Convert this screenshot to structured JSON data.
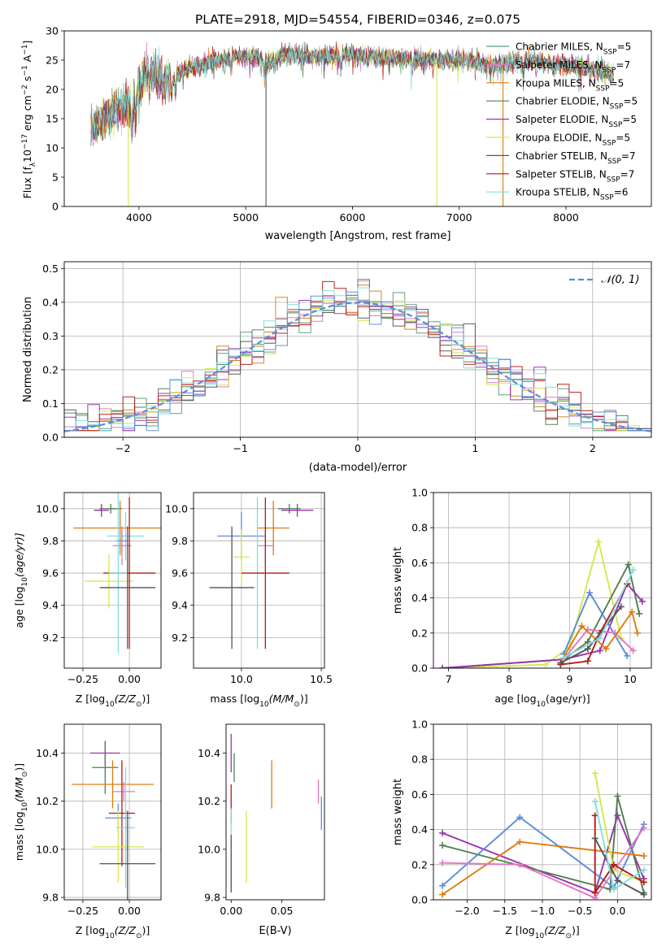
{
  "title": "PLATE=2918, MJD=54554, FIBERID=0346, z=0.075",
  "colors": {
    "Chabrier MILES": "#5a9a78",
    "Salpeter MILES": "#e377c2",
    "Kroupa MILES": "#e07b10",
    "Chabrier ELODIE": "#4f7f50",
    "Salpeter ELODIE": "#9b30b0",
    "Kroupa ELODIE": "#d4e84a",
    "Chabrier STELIB": "#555555",
    "Salpeter STELIB": "#b81818",
    "Kroupa STELIB": "#7fdede",
    "Blue model": "#5b8bdc",
    "Normal curve": "#5b8bdc"
  },
  "chart_data": [
    {
      "type": "line",
      "id": "spectrum",
      "title": "PLATE=2918, MJD=54554, FIBERID=0346, z=0.075",
      "xlabel": "wavelength [Angstrom, rest frame]",
      "ylabel_parts": [
        "Flux [f",
        "λ",
        "10",
        "−17",
        " erg cm",
        "−2",
        " s",
        "−1",
        " A",
        "−1",
        "]"
      ],
      "xlim": [
        3300,
        8800
      ],
      "ylim": [
        0,
        30
      ],
      "xticks": [
        4000,
        5000,
        6000,
        7000,
        8000
      ],
      "yticks": [
        0,
        5,
        10,
        15,
        20,
        25,
        30
      ],
      "legend_position": "upper right",
      "continuum": [
        [
          3550,
          13
        ],
        [
          3700,
          15.5
        ],
        [
          3850,
          17
        ],
        [
          3950,
          18
        ],
        [
          4000,
          20
        ],
        [
          4050,
          22
        ],
        [
          4100,
          23.5
        ],
        [
          4200,
          22
        ],
        [
          4300,
          22
        ],
        [
          4400,
          23
        ],
        [
          4500,
          24
        ],
        [
          4600,
          24
        ],
        [
          4700,
          25
        ],
        [
          4800,
          25
        ],
        [
          4900,
          25.5
        ],
        [
          5000,
          25.5
        ],
        [
          5100,
          25.5
        ],
        [
          5200,
          24.5
        ],
        [
          5300,
          25.5
        ],
        [
          5500,
          26
        ],
        [
          5700,
          25.5
        ],
        [
          5900,
          26
        ],
        [
          6100,
          25.5
        ],
        [
          6300,
          25.5
        ],
        [
          6500,
          25.2
        ],
        [
          6700,
          25
        ],
        [
          6900,
          25
        ],
        [
          7100,
          25
        ],
        [
          7300,
          24
        ],
        [
          7500,
          24.5
        ],
        [
          7700,
          25
        ],
        [
          7900,
          24.2
        ],
        [
          8100,
          24
        ],
        [
          8300,
          23.5
        ],
        [
          8450,
          22
        ]
      ],
      "series": [
        {
          "name_parts": [
            "Chabrier MILES, N",
            "SSP",
            "=5"
          ],
          "color_key": "Chabrier MILES"
        },
        {
          "name_parts": [
            "Salpeter MILES, N",
            "SSP",
            "=7"
          ],
          "color_key": "Salpeter MILES"
        },
        {
          "name_parts": [
            "Kroupa MILES, N",
            "SSP",
            "=5"
          ],
          "color_key": "Kroupa MILES"
        },
        {
          "name_parts": [
            "Chabrier ELODIE, N",
            "SSP",
            "=5"
          ],
          "color_key": "Chabrier ELODIE"
        },
        {
          "name_parts": [
            "Salpeter ELODIE, N",
            "SSP",
            "=5"
          ],
          "color_key": "Salpeter ELODIE"
        },
        {
          "name_parts": [
            "Kroupa ELODIE, N",
            "SSP",
            "=5"
          ],
          "color_key": "Kroupa ELODIE"
        },
        {
          "name_parts": [
            "Chabrier STELIB, N",
            "SSP",
            "=7"
          ],
          "color_key": "Chabrier STELIB"
        },
        {
          "name_parts": [
            "Salpeter STELIB, N",
            "SSP",
            "=7"
          ],
          "color_key": "Salpeter STELIB"
        },
        {
          "name_parts": [
            "Kroupa STELIB, N",
            "SSP",
            "=6"
          ],
          "color_key": "Kroupa STELIB"
        }
      ],
      "drops": [
        {
          "x": 3900,
          "color_key": "Kroupa ELODIE"
        },
        {
          "x": 5190,
          "color_key": "Chabrier STELIB"
        },
        {
          "x": 6790,
          "color_key": "Kroupa ELODIE"
        },
        {
          "x": 7410,
          "color_key": "Kroupa MILES"
        }
      ]
    },
    {
      "type": "histogram",
      "id": "residuals",
      "xlabel": "(data-model)/error",
      "ylabel": "Normed distribution",
      "xlim": [
        -2.5,
        2.5
      ],
      "ylim": [
        0,
        0.52
      ],
      "xticks": [
        -2,
        -1,
        0,
        1,
        2
      ],
      "yticks": [
        0.0,
        0.1,
        0.2,
        0.3,
        0.4,
        0.5
      ],
      "grid": true,
      "legend": "𝒩(0, 1)",
      "legend_position": "upper right",
      "bin_width": 0.1
    },
    {
      "type": "errorbar",
      "id": "age-vs-Z",
      "xlabel_parts": [
        "Z [log",
        "10",
        "(Z/Z",
        "⊙",
        ")]"
      ],
      "ylabel_parts": [
        "age  [log",
        "10",
        "(age/yr)]"
      ],
      "xlim": [
        -0.35,
        0.17
      ],
      "ylim": [
        9.01,
        10.1
      ],
      "xticks": [
        -0.25,
        0.0
      ],
      "yticks": [
        9.2,
        9.4,
        9.6,
        9.8,
        10.0
      ],
      "grid": true,
      "points": [
        {
          "x": -0.1,
          "xerr": 0.06,
          "y": 10.0,
          "yerr": 0.03,
          "color_key": "Chabrier ELODIE"
        },
        {
          "x": -0.15,
          "xerr": 0.04,
          "y": 9.99,
          "yerr": 0.04,
          "color_key": "Salpeter ELODIE"
        },
        {
          "x": -0.05,
          "xerr": 0.25,
          "y": 9.88,
          "yerr": 0.17,
          "color_key": "Kroupa MILES"
        },
        {
          "x": -0.02,
          "xerr": 0.1,
          "y": 9.83,
          "yerr": 0.15,
          "color_key": "Kroupa STELIB"
        },
        {
          "x": -0.04,
          "xerr": 0.03,
          "y": 9.8,
          "yerr": 0.07,
          "color_key": "Blue model"
        },
        {
          "x": -0.04,
          "xerr": 0.05,
          "y": 9.77,
          "yerr": 0.12,
          "color_key": "Salpeter MILES"
        },
        {
          "x": -0.11,
          "xerr": 0.13,
          "y": 9.55,
          "yerr": 0.17,
          "color_key": "Kroupa ELODIE"
        },
        {
          "x": 0.0,
          "xerr": 0.14,
          "y": 9.6,
          "yerr": 0.47,
          "color_key": "Salpeter STELIB"
        },
        {
          "x": -0.06,
          "xerr": 0.05,
          "y": 9.6,
          "yerr": 0.5,
          "color_key": "Kroupa STELIB"
        },
        {
          "x": -0.01,
          "xerr": 0.15,
          "y": 9.51,
          "yerr": 0.38,
          "color_key": "Chabrier STELIB"
        }
      ]
    },
    {
      "type": "errorbar",
      "id": "age-vs-mass",
      "xlabel_parts": [
        "mass [log",
        "10",
        "(M/M",
        "⊙",
        ")]"
      ],
      "xlim": [
        9.7,
        10.52
      ],
      "ylim": [
        9.01,
        10.1
      ],
      "xticks": [
        10.0,
        10.5
      ],
      "yticks": [
        9.2,
        9.4,
        9.6,
        9.8,
        10.0
      ],
      "grid": true,
      "points": [
        {
          "x": 10.3,
          "xerr": 0.07,
          "y": 10.0,
          "yerr": 0.03,
          "color_key": "Chabrier ELODIE"
        },
        {
          "x": 10.35,
          "xerr": 0.1,
          "y": 9.99,
          "yerr": 0.04,
          "color_key": "Salpeter ELODIE"
        },
        {
          "x": 10.2,
          "xerr": 0.1,
          "y": 9.88,
          "yerr": 0.17,
          "color_key": "Kroupa MILES"
        },
        {
          "x": 10.0,
          "xerr": 0.15,
          "y": 9.83,
          "yerr": 0.15,
          "color_key": "Blue model"
        },
        {
          "x": 10.15,
          "xerr": 0.05,
          "y": 9.77,
          "yerr": 0.12,
          "color_key": "Salpeter MILES"
        },
        {
          "x": 10.0,
          "xerr": 0.05,
          "y": 9.7,
          "yerr": 0.17,
          "color_key": "Kroupa ELODIE"
        },
        {
          "x": 10.1,
          "xerr": 0.02,
          "y": 9.6,
          "yerr": 0.47,
          "color_key": "Kroupa STELIB"
        },
        {
          "x": 10.15,
          "xerr": 0.15,
          "y": 9.6,
          "yerr": 0.47,
          "color_key": "Salpeter STELIB"
        },
        {
          "x": 9.94,
          "xerr": 0.14,
          "y": 9.51,
          "yerr": 0.38,
          "color_key": "Chabrier STELIB"
        }
      ]
    },
    {
      "type": "line",
      "id": "weight-vs-age",
      "xlabel_parts": [
        "age  [log",
        "10",
        "(age/yr)]"
      ],
      "ylabel": "mass weight",
      "xlim": [
        6.75,
        10.35
      ],
      "ylim": [
        0,
        1.0
      ],
      "xticks": [
        7,
        8,
        9,
        10
      ],
      "yticks": [
        0.0,
        0.2,
        0.4,
        0.6,
        0.8,
        1.0
      ],
      "grid": true,
      "series": [
        {
          "color_key": "Kroupa ELODIE",
          "x": [
            6.9,
            8.6,
            9.0,
            9.48,
            9.85
          ],
          "y": [
            0.0,
            0.02,
            0.12,
            0.72,
            0.17
          ]
        },
        {
          "color_key": "Chabrier ELODIE",
          "x": [
            6.9,
            8.9,
            9.3,
            9.97,
            10.15
          ],
          "y": [
            0.0,
            0.05,
            0.15,
            0.59,
            0.31
          ]
        },
        {
          "color_key": "Salpeter ELODIE",
          "x": [
            6.9,
            8.9,
            9.5,
            9.95,
            10.2
          ],
          "y": [
            0.0,
            0.05,
            0.1,
            0.48,
            0.38
          ]
        },
        {
          "color_key": "Blue model",
          "x": [
            8.9,
            9.33,
            9.95
          ],
          "y": [
            0.08,
            0.43,
            0.07
          ]
        },
        {
          "color_key": "Salpeter MILES",
          "x": [
            8.9,
            9.3,
            9.75,
            10.05
          ],
          "y": [
            0.05,
            0.22,
            0.2,
            0.1
          ]
        },
        {
          "color_key": "Kroupa MILES",
          "x": [
            8.85,
            9.2,
            9.6,
            10.03,
            10.12
          ],
          "y": [
            0.03,
            0.24,
            0.11,
            0.32,
            0.2
          ]
        },
        {
          "color_key": "Salpeter STELIB",
          "x": [
            8.85,
            9.3,
            9.5,
            9.95
          ],
          "y": [
            0.02,
            0.04,
            0.2,
            0.48
          ]
        },
        {
          "color_key": "Chabrier STELIB",
          "x": [
            8.85,
            9.3,
            9.85
          ],
          "y": [
            0.03,
            0.11,
            0.35
          ]
        },
        {
          "color_key": "Kroupa STELIB",
          "x": [
            8.9,
            9.5,
            10.05
          ],
          "y": [
            0.06,
            0.17,
            0.56
          ]
        }
      ]
    },
    {
      "type": "errorbar",
      "id": "mass-vs-Z",
      "xlabel_parts": [
        "Z [log",
        "10",
        "(Z/Z",
        "⊙",
        ")]"
      ],
      "ylabel_parts": [
        "mass [log",
        "10",
        "(M/M",
        "⊙",
        ")]"
      ],
      "xlim": [
        -0.35,
        0.17
      ],
      "ylim": [
        9.79,
        10.52
      ],
      "xticks": [
        -0.25,
        0.0
      ],
      "yticks": [
        9.8,
        10.0,
        10.2,
        10.4
      ],
      "grid": true,
      "points": [
        {
          "x": -0.13,
          "xerr": 0.08,
          "y": 10.4,
          "yerr": 0.05,
          "color_key": "Salpeter ELODIE"
        },
        {
          "x": -0.13,
          "xerr": 0.07,
          "y": 10.34,
          "yerr": 0.11,
          "color_key": "Chabrier ELODIE"
        },
        {
          "x": -0.09,
          "xerr": 0.22,
          "y": 10.27,
          "yerr": 0.1,
          "color_key": "Kroupa MILES"
        },
        {
          "x": -0.03,
          "xerr": 0.06,
          "y": 10.24,
          "yerr": 0.04,
          "color_key": "Salpeter MILES"
        },
        {
          "x": -0.04,
          "xerr": 0.07,
          "y": 10.15,
          "yerr": 0.22,
          "color_key": "Salpeter STELIB"
        },
        {
          "x": -0.06,
          "xerr": 0.07,
          "y": 10.13,
          "yerr": 0.06,
          "color_key": "Blue model"
        },
        {
          "x": -0.06,
          "xerr": 0.14,
          "y": 10.01,
          "yerr": 0.15,
          "color_key": "Kroupa ELODIE"
        },
        {
          "x": -0.02,
          "xerr": 0.05,
          "y": 10.09,
          "yerr": 0.25,
          "color_key": "Kroupa STELIB"
        },
        {
          "x": -0.01,
          "xerr": 0.15,
          "y": 9.94,
          "yerr": 0.22,
          "color_key": "Chabrier STELIB"
        }
      ]
    },
    {
      "type": "errorbar",
      "id": "mass-vs-EBV",
      "xlabel": "E(B-V)",
      "xlim": [
        -0.005,
        0.092
      ],
      "ylim": [
        9.79,
        10.52
      ],
      "xticks": [
        0.0,
        0.05
      ],
      "yticks": [
        9.8,
        10.0,
        10.2,
        10.4
      ],
      "grid": false,
      "points": [
        {
          "x": 0.0,
          "xerr": 0,
          "y": 10.4,
          "yerr": 0.08,
          "color_key": "Salpeter ELODIE"
        },
        {
          "x": 0.003,
          "xerr": 0,
          "y": 10.34,
          "yerr": 0.06,
          "color_key": "Chabrier ELODIE"
        },
        {
          "x": 0.04,
          "xerr": 0,
          "y": 10.27,
          "yerr": 0.1,
          "color_key": "Kroupa MILES"
        },
        {
          "x": 0.086,
          "xerr": 0,
          "y": 10.24,
          "yerr": 0.05,
          "color_key": "Salpeter MILES"
        },
        {
          "x": 0.0,
          "xerr": 0,
          "y": 10.19,
          "yerr": 0.08,
          "color_key": "Salpeter STELIB"
        },
        {
          "x": 0.089,
          "xerr": 0,
          "y": 10.15,
          "yerr": 0.07,
          "color_key": "Blue model"
        },
        {
          "x": 0.015,
          "xerr": 0,
          "y": 10.01,
          "yerr": 0.15,
          "color_key": "Kroupa ELODIE"
        },
        {
          "x": 0.0,
          "xerr": 0,
          "y": 10.0,
          "yerr": 0.17,
          "color_key": "Kroupa STELIB"
        },
        {
          "x": 0.0,
          "xerr": 0,
          "y": 9.94,
          "yerr": 0.12,
          "color_key": "Chabrier STELIB"
        }
      ]
    },
    {
      "type": "line",
      "id": "weight-vs-Z",
      "xlabel_parts": [
        "Z [log",
        "10",
        "(Z/Z",
        "⊙",
        ")]"
      ],
      "ylabel": "mass weight",
      "xlim": [
        -2.45,
        0.45
      ],
      "ylim": [
        0,
        1.0
      ],
      "xticks": [
        -2.0,
        -1.5,
        -1.0,
        -0.5,
        0.0
      ],
      "yticks": [
        0.0,
        0.2,
        0.4,
        0.6,
        0.8,
        1.0
      ],
      "grid": true,
      "series": [
        {
          "color_key": "Salpeter ELODIE",
          "x": [
            -2.33,
            -0.3,
            0.0,
            0.35
          ],
          "y": [
            0.38,
            0.04,
            0.48,
            0.12
          ]
        },
        {
          "color_key": "Chabrier ELODIE",
          "x": [
            -2.33,
            -0.1,
            0.0,
            0.35
          ],
          "y": [
            0.31,
            0.06,
            0.59,
            0.04
          ]
        },
        {
          "color_key": "Blue model",
          "x": [
            -2.33,
            -1.3,
            -0.05,
            0.35
          ],
          "y": [
            0.08,
            0.47,
            0.07,
            0.43
          ]
        },
        {
          "color_key": "Kroupa MILES",
          "x": [
            -2.33,
            -1.3,
            0.35
          ],
          "y": [
            0.03,
            0.33,
            0.25
          ]
        },
        {
          "color_key": "Salpeter MILES",
          "x": [
            -2.33,
            -1.3,
            -0.3,
            0.35
          ],
          "y": [
            0.21,
            0.2,
            0.01,
            0.41
          ]
        },
        {
          "color_key": "Kroupa ELODIE",
          "x": [
            -0.3,
            -0.05,
            0.35
          ],
          "y": [
            0.72,
            0.17,
            0.1
          ]
        },
        {
          "color_key": "Salpeter STELIB",
          "x": [
            -0.3,
            -0.3,
            -0.05,
            0.35
          ],
          "y": [
            0.48,
            0.04,
            0.2,
            0.1
          ]
        },
        {
          "color_key": "Chabrier STELIB",
          "x": [
            -0.3,
            0.0,
            0.35
          ],
          "y": [
            0.35,
            0.11,
            0.03
          ]
        },
        {
          "color_key": "Kroupa STELIB",
          "x": [
            -0.3,
            -0.05,
            0.35
          ],
          "y": [
            0.56,
            0.06,
            0.17
          ]
        }
      ]
    }
  ]
}
